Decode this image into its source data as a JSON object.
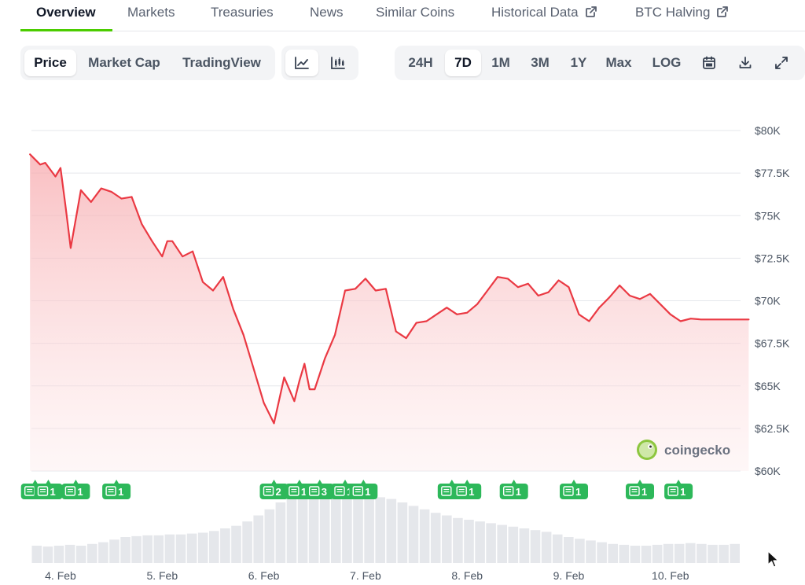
{
  "nav": {
    "tabs": [
      {
        "label": "Overview",
        "active": true
      },
      {
        "label": "Markets"
      },
      {
        "label": "Treasuries"
      },
      {
        "label": "News"
      },
      {
        "label": "Similar Coins"
      },
      {
        "label": "Historical Data",
        "external": true
      },
      {
        "label": "BTC Halving",
        "external": true
      }
    ]
  },
  "toolbar": {
    "view_modes": [
      "Price",
      "Market Cap",
      "TradingView"
    ],
    "active_view": "Price",
    "chart_styles": [
      "line-chart-icon",
      "candlestick-icon"
    ],
    "active_style": "line-chart-icon",
    "ranges": [
      "24H",
      "7D",
      "1M",
      "3M",
      "1Y",
      "Max",
      "LOG"
    ],
    "active_range": "7D",
    "tools": [
      "calendar-icon",
      "download-icon",
      "fullscreen-icon"
    ]
  },
  "watermark": "coingecko",
  "colors": {
    "line": "#ea3943",
    "fill": "#fbd1d3",
    "badge": "#2db85a",
    "accent": "#4bcc00"
  },
  "chart_data": {
    "type": "area",
    "y_tick_labels": [
      "$80K",
      "$77.5K",
      "$75K",
      "$72.5K",
      "$70K",
      "$67.5K",
      "$65K",
      "$62.5K",
      "$60K"
    ],
    "ylim": [
      60000,
      80000
    ],
    "x_tick_labels": [
      "4. Feb",
      "5. Feb",
      "6. Feb",
      "7. Feb",
      "8. Feb",
      "9. Feb",
      "10. Feb"
    ],
    "xlim": [
      -0.3,
      6.77
    ],
    "series": [
      {
        "x": [
          -0.3,
          -0.2,
          -0.15,
          -0.05,
          0.0,
          0.05,
          0.1,
          0.2,
          0.3,
          0.4,
          0.5,
          0.6,
          0.7,
          0.8,
          0.9,
          1.0,
          1.05,
          1.1,
          1.2,
          1.3,
          1.4,
          1.5,
          1.6,
          1.7,
          1.8,
          1.9,
          2.0,
          2.1,
          2.2,
          2.3,
          2.35,
          2.4,
          2.45,
          2.5,
          2.6,
          2.7,
          2.8,
          2.9,
          3.0,
          3.1,
          3.2,
          3.3,
          3.4,
          3.5,
          3.6,
          3.7,
          3.8,
          3.9,
          4.0,
          4.1,
          4.2,
          4.3,
          4.4,
          4.5,
          4.6,
          4.7,
          4.8,
          4.9,
          5.0,
          5.1,
          5.2,
          5.3,
          5.4,
          5.5,
          5.6,
          5.7,
          5.8,
          5.9,
          6.0,
          6.1,
          6.2,
          6.3,
          6.4,
          6.5,
          6.6,
          6.7,
          6.77
        ],
        "y": [
          78600,
          78000,
          78100,
          77300,
          77800,
          75500,
          73100,
          76500,
          75800,
          76600,
          76400,
          76000,
          76100,
          74500,
          73500,
          72600,
          73500,
          73500,
          72600,
          72900,
          71100,
          70600,
          71400,
          69500,
          68000,
          66000,
          64000,
          62800,
          65500,
          64100,
          65300,
          66300,
          64800,
          64800,
          66600,
          68000,
          70600,
          70700,
          71300,
          70600,
          70700,
          68200,
          67800,
          68700,
          68800,
          69200,
          69600,
          69200,
          69300,
          69800,
          70600,
          71400,
          71300,
          70800,
          71000,
          70300,
          70500,
          71200,
          70800,
          69200,
          68800,
          69600,
          70200,
          70900,
          70300,
          70100,
          70400,
          69800,
          69200,
          68800,
          68950,
          68900,
          68900,
          68900,
          68900,
          68900,
          68900
        ]
      }
    ],
    "news_badges": [
      {
        "x": -0.25,
        "count": "1"
      },
      {
        "x": -0.12,
        "count": "1"
      },
      {
        "x": 0.15,
        "count": "1"
      },
      {
        "x": 0.55,
        "count": "1"
      },
      {
        "x": 2.1,
        "count": "2"
      },
      {
        "x": 2.35,
        "count": "1"
      },
      {
        "x": 2.55,
        "count": "3"
      },
      {
        "x": 2.8,
        "count": "1"
      },
      {
        "x": 2.98,
        "count": "1"
      },
      {
        "x": 3.85,
        "count": "1"
      },
      {
        "x": 4.0,
        "count": "1"
      },
      {
        "x": 4.46,
        "count": "1"
      },
      {
        "x": 5.05,
        "count": "1"
      },
      {
        "x": 5.7,
        "count": "1"
      },
      {
        "x": 6.08,
        "count": "1"
      }
    ],
    "volume": [
      0.2,
      0.19,
      0.2,
      0.21,
      0.2,
      0.22,
      0.24,
      0.27,
      0.3,
      0.31,
      0.32,
      0.32,
      0.33,
      0.33,
      0.34,
      0.35,
      0.37,
      0.4,
      0.43,
      0.48,
      0.55,
      0.62,
      0.7,
      0.76,
      0.8,
      0.84,
      0.85,
      0.84,
      0.82,
      0.8,
      0.78,
      0.76,
      0.74,
      0.7,
      0.66,
      0.62,
      0.58,
      0.55,
      0.52,
      0.5,
      0.48,
      0.46,
      0.44,
      0.42,
      0.4,
      0.38,
      0.36,
      0.33,
      0.3,
      0.28,
      0.26,
      0.24,
      0.22,
      0.21,
      0.2,
      0.2,
      0.21,
      0.22,
      0.22,
      0.23,
      0.22,
      0.21,
      0.21,
      0.22
    ]
  }
}
